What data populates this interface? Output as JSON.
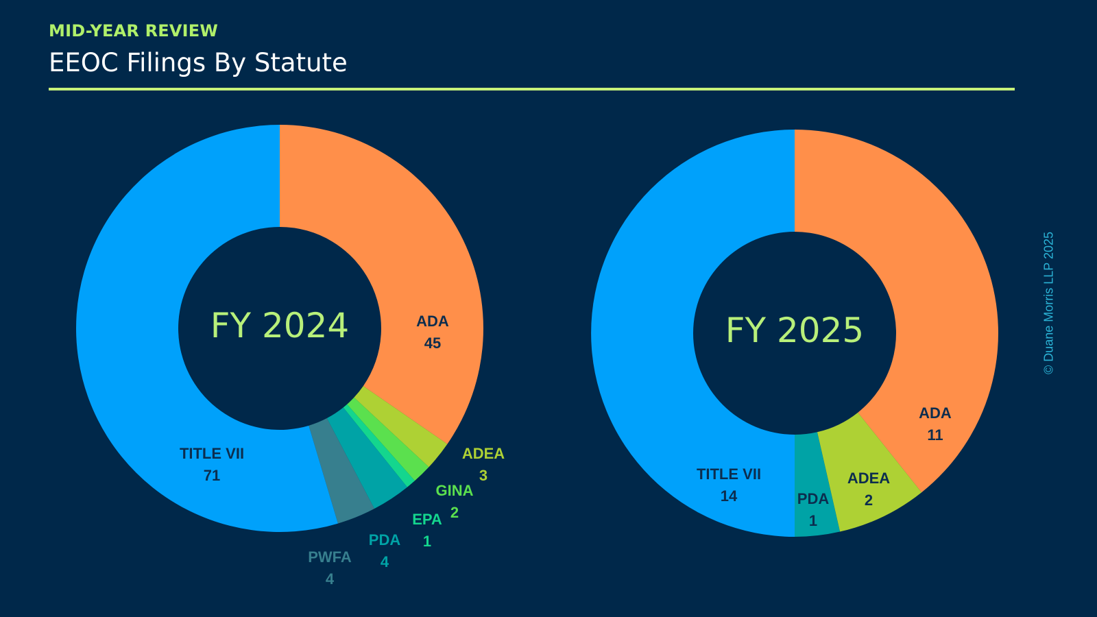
{
  "header": {
    "kicker": "MID-YEAR REVIEW",
    "title": "EEOC Filings By Statute"
  },
  "copyright": "© Duane Morris LLP 2025",
  "colors": {
    "background": "#00284a",
    "accent": "#b0f06a",
    "rule": "#c6f27a",
    "center_label": "#b8f07a",
    "dark_label": "#0c2d4e"
  },
  "chart_data": [
    {
      "type": "pie",
      "title": "FY 2024",
      "donut": true,
      "slices": [
        {
          "label": "ADA",
          "value": 45,
          "color": "#ff8f4a"
        },
        {
          "label": "ADEA",
          "value": 3,
          "color": "#aed134"
        },
        {
          "label": "GINA",
          "value": 2,
          "color": "#5be04e"
        },
        {
          "label": "EPA",
          "value": 1,
          "color": "#14d68e"
        },
        {
          "label": "PDA",
          "value": 4,
          "color": "#00a3a6"
        },
        {
          "label": "PWFA",
          "value": 4,
          "color": "#377f8e"
        },
        {
          "label": "TITLE VII",
          "value": 71,
          "color": "#00a1fb"
        }
      ]
    },
    {
      "type": "pie",
      "title": "FY 2025",
      "donut": true,
      "slices": [
        {
          "label": "ADA",
          "value": 11,
          "color": "#ff8f4a"
        },
        {
          "label": "ADEA",
          "value": 2,
          "color": "#aed134"
        },
        {
          "label": "PDA",
          "value": 1,
          "color": "#00a3a6"
        },
        {
          "label": "TITLE VII",
          "value": 14,
          "color": "#00a1fb"
        }
      ]
    }
  ]
}
